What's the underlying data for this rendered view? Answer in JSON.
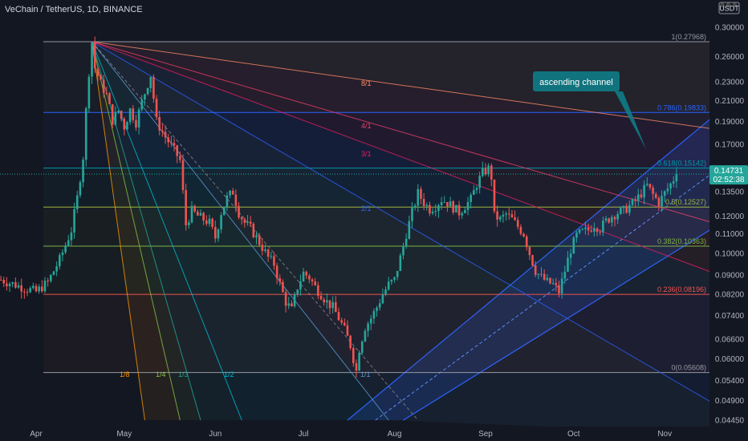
{
  "header": {
    "title": "VeChain / TetherUS, 1D, BINANCE",
    "currency": "USDT",
    "currency_menu_marker": "⚫ ⚫ ⚫"
  },
  "colors": {
    "background": "#131722",
    "up": "#26a69a",
    "down": "#ef5350",
    "channel": "#2962ff",
    "callout": "#0e7c86"
  },
  "annotation": {
    "text": "ascending channel"
  },
  "price_tag": {
    "price": "0.14731",
    "countdown": "02:52:38"
  },
  "chart_data": {
    "type": "candlestick",
    "title": "VeChain / TetherUS, 1D, BINANCE",
    "scale": "log",
    "ylim": [
      0.0445,
      0.322
    ],
    "y_ticks": [
      "0.30000",
      "0.26000",
      "0.23000",
      "0.21000",
      "0.19000",
      "0.17000",
      "0.15000",
      "0.13500",
      "0.12000",
      "0.11000",
      "0.10000",
      "0.09000",
      "0.08200",
      "0.07400",
      "0.06600",
      "0.06000",
      "0.05400",
      "0.04900",
      "0.04450"
    ],
    "x_ticks": [
      "Apr",
      "May",
      "Jun",
      "Jul",
      "Aug",
      "Sep",
      "Oct",
      "Nov"
    ],
    "x_tick_days": [
      0,
      30,
      61,
      91,
      122,
      153,
      183,
      214
    ],
    "last_day": 218,
    "anchors": [
      [
        -12,
        0.088
      ],
      [
        -5,
        0.085
      ],
      [
        0,
        0.083
      ],
      [
        4,
        0.087
      ],
      [
        8,
        0.097
      ],
      [
        12,
        0.112
      ],
      [
        14,
        0.131
      ],
      [
        16,
        0.16
      ],
      [
        17,
        0.2
      ],
      [
        18,
        0.242
      ],
      [
        19,
        0.279
      ],
      [
        20,
        0.246
      ],
      [
        22,
        0.228
      ],
      [
        24,
        0.216
      ],
      [
        26,
        0.191
      ],
      [
        28,
        0.2
      ],
      [
        30,
        0.185
      ],
      [
        32,
        0.201
      ],
      [
        34,
        0.189
      ],
      [
        36,
        0.209
      ],
      [
        38,
        0.228
      ],
      [
        39,
        0.238
      ],
      [
        41,
        0.19
      ],
      [
        44,
        0.176
      ],
      [
        47,
        0.165
      ],
      [
        49,
        0.157
      ],
      [
        51,
        0.115
      ],
      [
        53,
        0.123
      ],
      [
        55,
        0.12
      ],
      [
        57,
        0.118
      ],
      [
        59,
        0.116
      ],
      [
        61,
        0.108
      ],
      [
        63,
        0.122
      ],
      [
        65,
        0.131
      ],
      [
        67,
        0.135
      ],
      [
        69,
        0.122
      ],
      [
        71,
        0.116
      ],
      [
        73,
        0.113
      ],
      [
        75,
        0.108
      ],
      [
        77,
        0.103
      ],
      [
        79,
        0.098
      ],
      [
        81,
        0.095
      ],
      [
        83,
        0.086
      ],
      [
        85,
        0.079
      ],
      [
        87,
        0.076
      ],
      [
        89,
        0.085
      ],
      [
        91,
        0.091
      ],
      [
        93,
        0.089
      ],
      [
        95,
        0.085
      ],
      [
        97,
        0.082
      ],
      [
        99,
        0.079
      ],
      [
        101,
        0.077
      ],
      [
        103,
        0.073
      ],
      [
        105,
        0.069
      ],
      [
        107,
        0.064
      ],
      [
        108,
        0.06
      ],
      [
        109,
        0.0565
      ],
      [
        110,
        0.063
      ],
      [
        112,
        0.07
      ],
      [
        114,
        0.073
      ],
      [
        116,
        0.077
      ],
      [
        118,
        0.082
      ],
      [
        120,
        0.086
      ],
      [
        122,
        0.088
      ],
      [
        124,
        0.098
      ],
      [
        126,
        0.11
      ],
      [
        128,
        0.122
      ],
      [
        130,
        0.134
      ],
      [
        132,
        0.128
      ],
      [
        134,
        0.124
      ],
      [
        136,
        0.126
      ],
      [
        138,
        0.13
      ],
      [
        140,
        0.128
      ],
      [
        142,
        0.125
      ],
      [
        144,
        0.122
      ],
      [
        146,
        0.126
      ],
      [
        148,
        0.13
      ],
      [
        150,
        0.14
      ],
      [
        152,
        0.148
      ],
      [
        154,
        0.151
      ],
      [
        155,
        0.145
      ],
      [
        156,
        0.12
      ],
      [
        158,
        0.118
      ],
      [
        160,
        0.121
      ],
      [
        162,
        0.118
      ],
      [
        164,
        0.114
      ],
      [
        166,
        0.11
      ],
      [
        168,
        0.1
      ],
      [
        170,
        0.092
      ],
      [
        172,
        0.089
      ],
      [
        174,
        0.087
      ],
      [
        176,
        0.086
      ],
      [
        178,
        0.083
      ],
      [
        180,
        0.092
      ],
      [
        182,
        0.102
      ],
      [
        184,
        0.109
      ],
      [
        186,
        0.111
      ],
      [
        188,
        0.112
      ],
      [
        190,
        0.115
      ],
      [
        192,
        0.113
      ],
      [
        194,
        0.117
      ],
      [
        196,
        0.12
      ],
      [
        198,
        0.122
      ],
      [
        200,
        0.123
      ],
      [
        202,
        0.126
      ],
      [
        204,
        0.129
      ],
      [
        206,
        0.134
      ],
      [
        208,
        0.139
      ],
      [
        210,
        0.133
      ],
      [
        212,
        0.128
      ],
      [
        214,
        0.134
      ],
      [
        216,
        0.14
      ],
      [
        218,
        0.147
      ]
    ],
    "fib": {
      "levels": [
        {
          "ratio": "1",
          "price": 0.27968,
          "label": "1(0.27968)",
          "color": "#9598a1"
        },
        {
          "ratio": "0.786",
          "price": 0.19833,
          "label": "0.786(0.19833)",
          "color": "#2962ff"
        },
        {
          "ratio": "0.618",
          "price": 0.15142,
          "label": "0.618(0.15142)",
          "color": "#0097a7"
        },
        {
          "ratio": "0.5",
          "price": 0.12527,
          "label": "0.5(0.12527)",
          "color": "#9fb33f"
        },
        {
          "ratio": "0.382",
          "price": 0.10363,
          "label": "0.382(0.10363)",
          "color": "#7cb342"
        },
        {
          "ratio": "0.236",
          "price": 0.08196,
          "label": "0.236(0.08196)",
          "color": "#ef5350"
        },
        {
          "ratio": "0",
          "price": 0.05608,
          "label": "0(0.05608)",
          "color": "#9598a1"
        }
      ]
    },
    "gann_fan": {
      "origin": {
        "day": 19,
        "price": 0.27968
      },
      "lines": [
        {
          "label": "8/1",
          "end": {
            "day": 239,
            "price": 0.18
          },
          "color": "#ff8a65"
        },
        {
          "label": "4/1",
          "end": {
            "day": 239,
            "price": 0.112
          },
          "color": "#ef3f6b"
        },
        {
          "label": "3/1",
          "end": {
            "day": 239,
            "price": 0.087
          },
          "color": "#e91e63"
        },
        {
          "label": "2/1",
          "end": {
            "day": 239,
            "price": 0.045
          },
          "color": "#2962ff"
        },
        {
          "label": "1/1",
          "end": {
            "day": 120,
            "price": 0.0445
          },
          "color": "#5b9bd5"
        },
        {
          "label": "1/2",
          "end": {
            "day": 70,
            "price": 0.0445
          },
          "color": "#00bcd4"
        },
        {
          "label": "1/3",
          "end": {
            "day": 56,
            "price": 0.0445
          },
          "color": "#26a69a"
        },
        {
          "label": "1/4",
          "end": {
            "day": 49,
            "price": 0.0445
          },
          "color": "#8bc34a"
        },
        {
          "label": "1/8",
          "end": {
            "day": 37,
            "price": 0.0445
          },
          "color": "#ff9800"
        }
      ]
    },
    "channel": {
      "lower": [
        {
          "day": 125,
          "price": 0.0445
        },
        {
          "day": 239,
          "price": 0.122
        }
      ],
      "upper": [
        {
          "day": 106,
          "price": 0.0445
        },
        {
          "day": 239,
          "price": 0.215
        }
      ]
    }
  }
}
